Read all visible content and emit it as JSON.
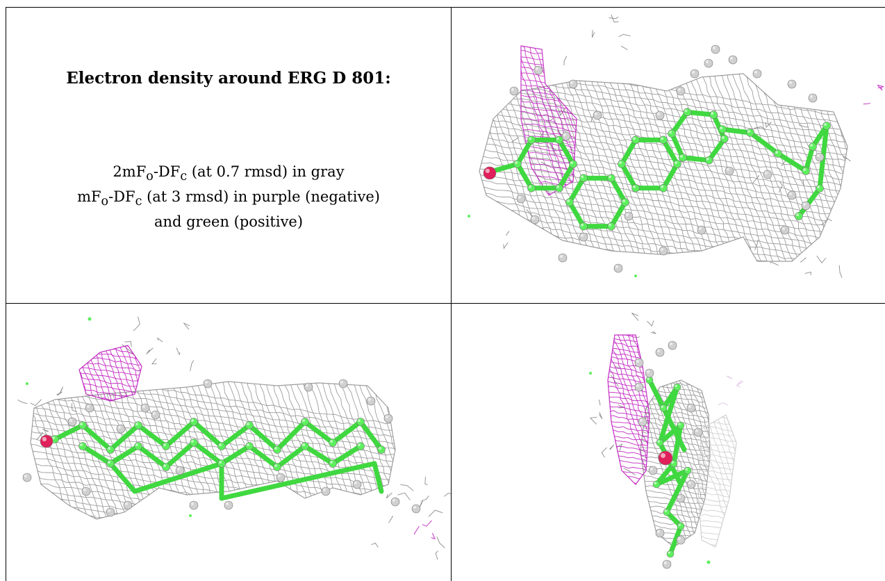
{
  "title": "Electron density around ERG D 801:",
  "legend": {
    "line1": {
      "m_prefix": "2mF",
      "o_sub": "o",
      "dash": "-DF",
      "c_sub": "c",
      "rest": " (at 0.7 rmsd) in gray"
    },
    "line2": {
      "m_prefix": "mF",
      "o_sub": "o",
      "dash": "-DF",
      "c_sub": "c",
      "rest": " (at 3 rmsd) in purple (negative)"
    },
    "line3": "and green (positive)"
  },
  "colors": {
    "mesh_gray": "#8c8c8c",
    "mesh_purple": "#c020c0",
    "atom_green": "#5cf05c",
    "bond_green": "#40d840",
    "hydrogen": "#d0d0d0",
    "oxygen": "#e0205a"
  },
  "views": [
    {
      "id": "view-front",
      "description_icon": "molecule-view"
    },
    {
      "id": "view-side",
      "description_icon": "molecule-view"
    },
    {
      "id": "view-end",
      "description_icon": "molecule-view"
    }
  ]
}
